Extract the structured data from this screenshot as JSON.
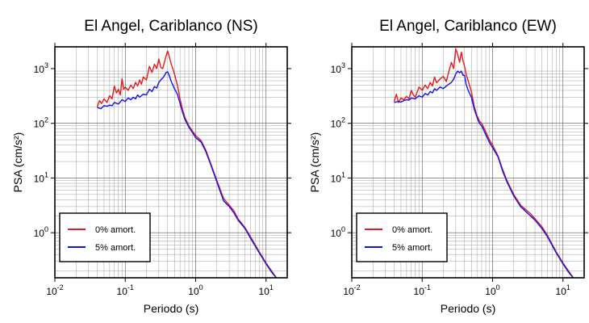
{
  "chart_data": [
    {
      "type": "line",
      "title": "El Angel, Cariblanco (NS)",
      "xlabel": "Periodo (s)",
      "ylabel": "PSA (cm/s²)",
      "xscale": "log",
      "yscale": "log",
      "xlim": [
        0.01,
        20
      ],
      "ylim": [
        0.15,
        2500
      ],
      "grid": true,
      "legend": {
        "position": "bottom-left",
        "boxed": true
      },
      "x_ticks": [
        {
          "base": "10",
          "exp": "-2",
          "value": 0.01
        },
        {
          "base": "10",
          "exp": "-1",
          "value": 0.1
        },
        {
          "base": "10",
          "exp": "0",
          "value": 1
        },
        {
          "base": "10",
          "exp": "1",
          "value": 10
        }
      ],
      "y_ticks": [
        {
          "base": "10",
          "exp": "0",
          "value": 1
        },
        {
          "base": "10",
          "exp": "1",
          "value": 10
        },
        {
          "base": "10",
          "exp": "2",
          "value": 100
        },
        {
          "base": "10",
          "exp": "3",
          "value": 1000
        }
      ],
      "series": [
        {
          "name": "0% amort.",
          "color": "#e41a1c",
          "x": [
            0.04,
            0.043,
            0.046,
            0.05,
            0.055,
            0.06,
            0.065,
            0.07,
            0.075,
            0.08,
            0.085,
            0.09,
            0.095,
            0.1,
            0.11,
            0.12,
            0.13,
            0.14,
            0.15,
            0.16,
            0.17,
            0.18,
            0.2,
            0.22,
            0.24,
            0.26,
            0.28,
            0.3,
            0.32,
            0.34,
            0.36,
            0.38,
            0.4,
            0.42,
            0.45,
            0.5,
            0.55,
            0.6,
            0.65,
            0.7,
            0.8,
            0.9,
            1.0,
            1.2,
            1.4,
            1.6,
            2.0,
            2.5,
            3.0,
            3.5,
            4.0,
            5.0,
            6.0,
            8.0,
            10.0,
            12.0,
            14.0
          ],
          "y": [
            200,
            260,
            230,
            280,
            240,
            320,
            280,
            480,
            360,
            420,
            330,
            650,
            420,
            460,
            400,
            500,
            430,
            560,
            480,
            620,
            520,
            700,
            620,
            1100,
            850,
            1200,
            1000,
            1500,
            1050,
            1000,
            1300,
            1700,
            2100,
            1700,
            1200,
            800,
            500,
            280,
            180,
            130,
            90,
            72,
            60,
            48,
            32,
            20,
            9,
            4.2,
            3.2,
            2.5,
            1.8,
            1.25,
            0.85,
            0.45,
            0.28,
            0.2,
            0.15
          ]
        },
        {
          "name": "5% amort.",
          "color": "#1111ee",
          "x": [
            0.04,
            0.045,
            0.05,
            0.055,
            0.06,
            0.065,
            0.07,
            0.08,
            0.09,
            0.1,
            0.11,
            0.12,
            0.13,
            0.14,
            0.15,
            0.16,
            0.18,
            0.2,
            0.22,
            0.24,
            0.26,
            0.28,
            0.3,
            0.32,
            0.35,
            0.38,
            0.4,
            0.42,
            0.45,
            0.5,
            0.55,
            0.6,
            0.65,
            0.7,
            0.8,
            0.9,
            1.0,
            1.2,
            1.4,
            1.6,
            2.0,
            2.5,
            3.0,
            3.5,
            4.0,
            5.0,
            6.0,
            8.0,
            10.0,
            12.0,
            14.0
          ],
          "y": [
            195,
            185,
            210,
            205,
            215,
            210,
            240,
            225,
            270,
            250,
            290,
            270,
            300,
            280,
            330,
            300,
            340,
            330,
            420,
            380,
            470,
            440,
            560,
            620,
            700,
            850,
            870,
            760,
            580,
            430,
            340,
            230,
            160,
            120,
            85,
            68,
            55,
            45,
            30,
            19,
            8.5,
            3.8,
            3.0,
            2.3,
            1.7,
            1.2,
            0.8,
            0.43,
            0.27,
            0.19,
            0.15
          ]
        }
      ]
    },
    {
      "type": "line",
      "title": "El Angel, Cariblanco (EW)",
      "xlabel": "Periodo (s)",
      "ylabel": "PSA (cm/s²)",
      "xscale": "log",
      "yscale": "log",
      "xlim": [
        0.01,
        20
      ],
      "ylim": [
        0.15,
        2500
      ],
      "grid": true,
      "legend": {
        "position": "bottom-left",
        "boxed": true
      },
      "x_ticks": [
        {
          "base": "10",
          "exp": "-2",
          "value": 0.01
        },
        {
          "base": "10",
          "exp": "-1",
          "value": 0.1
        },
        {
          "base": "10",
          "exp": "0",
          "value": 1
        },
        {
          "base": "10",
          "exp": "1",
          "value": 10
        }
      ],
      "y_ticks": [
        {
          "base": "10",
          "exp": "0",
          "value": 1
        },
        {
          "base": "10",
          "exp": "1",
          "value": 10
        },
        {
          "base": "10",
          "exp": "2",
          "value": 100
        },
        {
          "base": "10",
          "exp": "3",
          "value": 1000
        }
      ],
      "series": [
        {
          "name": "0% amort.",
          "color": "#e41a1c",
          "x": [
            0.04,
            0.043,
            0.046,
            0.05,
            0.055,
            0.06,
            0.065,
            0.07,
            0.075,
            0.08,
            0.09,
            0.1,
            0.11,
            0.12,
            0.13,
            0.14,
            0.15,
            0.16,
            0.17,
            0.18,
            0.2,
            0.22,
            0.24,
            0.26,
            0.28,
            0.3,
            0.32,
            0.34,
            0.36,
            0.38,
            0.4,
            0.42,
            0.45,
            0.5,
            0.55,
            0.6,
            0.65,
            0.7,
            0.8,
            0.9,
            1.0,
            1.2,
            1.4,
            1.6,
            2.0,
            2.5,
            3.0,
            3.5,
            4.0,
            5.0,
            6.0,
            8.0,
            10.0,
            12.0,
            14.0
          ],
          "y": [
            250,
            340,
            240,
            290,
            270,
            310,
            280,
            400,
            330,
            300,
            460,
            400,
            500,
            430,
            560,
            480,
            700,
            550,
            600,
            650,
            720,
            580,
            900,
            1300,
            1000,
            2300,
            1800,
            1300,
            2000,
            1400,
            1100,
            800,
            600,
            380,
            200,
            140,
            110,
            100,
            70,
            50,
            40,
            25,
            14,
            9,
            5,
            3.2,
            2.6,
            2.2,
            1.8,
            1.3,
            0.9,
            0.45,
            0.28,
            0.2,
            0.15
          ]
        },
        {
          "name": "5% amort.",
          "color": "#1111ee",
          "x": [
            0.04,
            0.045,
            0.05,
            0.055,
            0.06,
            0.065,
            0.07,
            0.08,
            0.09,
            0.1,
            0.11,
            0.12,
            0.13,
            0.14,
            0.15,
            0.16,
            0.18,
            0.2,
            0.22,
            0.24,
            0.26,
            0.28,
            0.3,
            0.32,
            0.34,
            0.36,
            0.38,
            0.4,
            0.42,
            0.45,
            0.5,
            0.55,
            0.6,
            0.65,
            0.7,
            0.8,
            0.9,
            1.0,
            1.2,
            1.4,
            1.6,
            2.0,
            2.5,
            3.0,
            3.5,
            4.0,
            5.0,
            6.0,
            8.0,
            10.0,
            12.0,
            14.0
          ],
          "y": [
            240,
            250,
            245,
            260,
            270,
            265,
            290,
            280,
            320,
            300,
            350,
            330,
            380,
            360,
            430,
            400,
            460,
            430,
            480,
            520,
            560,
            640,
            800,
            900,
            840,
            900,
            750,
            760,
            520,
            400,
            300,
            180,
            130,
            100,
            90,
            62,
            45,
            36,
            24,
            13,
            8.5,
            4.7,
            3.0,
            2.4,
            2.0,
            1.7,
            1.2,
            0.85,
            0.43,
            0.27,
            0.19,
            0.15
          ]
        }
      ]
    }
  ]
}
